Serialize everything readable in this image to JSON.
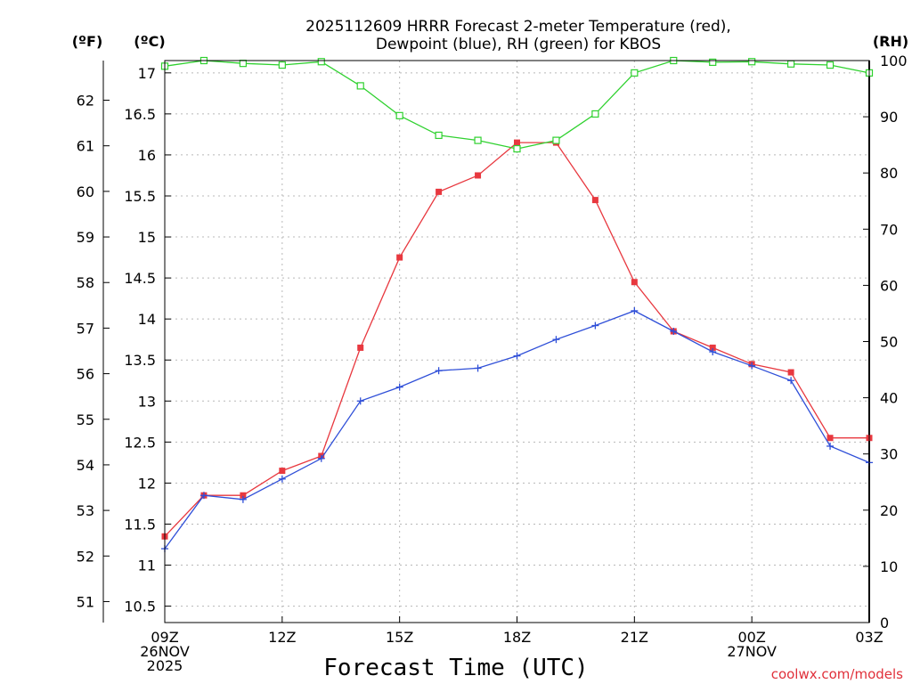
{
  "colors": {
    "temperature": "#e8383f",
    "dewpoint": "#2f4fd8",
    "rh": "#2fd12f",
    "credit": "#e0303a"
  },
  "chart_data": {
    "type": "line",
    "title_lines": [
      "2025112609 HRRR Forecast 2-meter Temperature (red),",
      "Dewpoint (blue), RH (green) for KBOS"
    ],
    "xlabel": "Forecast Time (UTC)",
    "units": {
      "fahrenheit": "(ºF)",
      "celsius": "(ºC)",
      "rh": "(RH)"
    },
    "credit": "coolwx.com/models",
    "x_hours": [
      0,
      1,
      2,
      3,
      4,
      5,
      6,
      7,
      8,
      9,
      10,
      11,
      12,
      13,
      14,
      15,
      16,
      17,
      18
    ],
    "x_range": [
      0,
      18
    ],
    "x_ticks": [
      {
        "hour": 0,
        "lines": [
          "09Z",
          "26NOV",
          "2025"
        ]
      },
      {
        "hour": 3,
        "lines": [
          "12Z"
        ]
      },
      {
        "hour": 6,
        "lines": [
          "15Z"
        ]
      },
      {
        "hour": 9,
        "lines": [
          "18Z"
        ]
      },
      {
        "hour": 12,
        "lines": [
          "21Z"
        ]
      },
      {
        "hour": 15,
        "lines": [
          "00Z",
          "27NOV"
        ]
      },
      {
        "hour": 18,
        "lines": [
          "03Z"
        ]
      }
    ],
    "celsius_axis": {
      "range": [
        10.3,
        17.15
      ],
      "ticks": [
        "10.5",
        "11",
        "11.5",
        "12",
        "12.5",
        "13",
        "13.5",
        "14",
        "14.5",
        "15",
        "15.5",
        "16",
        "16.5",
        "17"
      ]
    },
    "fahrenheit_axis": {
      "ticks": [
        "51",
        "52",
        "53",
        "54",
        "55",
        "56",
        "57",
        "58",
        "59",
        "60",
        "61",
        "62"
      ]
    },
    "rh_axis": {
      "range": [
        0,
        100
      ],
      "ticks": [
        "0",
        "10",
        "20",
        "30",
        "40",
        "50",
        "60",
        "70",
        "80",
        "90",
        "100"
      ]
    },
    "series": [
      {
        "name": "Temperature",
        "color_key": "temperature",
        "axis": "celsius",
        "marker": "filled-square",
        "values": [
          11.35,
          11.85,
          11.85,
          12.15,
          12.33,
          13.65,
          14.75,
          15.55,
          15.75,
          16.15,
          16.15,
          15.45,
          14.45,
          13.85,
          13.65,
          13.45,
          13.35,
          12.55,
          12.55
        ]
      },
      {
        "name": "Dewpoint",
        "color_key": "dewpoint",
        "axis": "celsius",
        "marker": "plus",
        "values": [
          11.2,
          11.85,
          11.8,
          12.05,
          12.3,
          13.0,
          13.17,
          13.37,
          13.4,
          13.55,
          13.75,
          13.92,
          14.1,
          13.85,
          13.6,
          13.43,
          13.25,
          12.45,
          12.25
        ]
      },
      {
        "name": "RH",
        "color_key": "rh",
        "axis": "rh",
        "marker": "open-square",
        "values": [
          99,
          100,
          99.5,
          99.2,
          99.8,
          95.5,
          90.2,
          86.7,
          85.8,
          84.3,
          85.8,
          90.5,
          97.8,
          100,
          99.7,
          99.8,
          99.4,
          99.2,
          97.8
        ]
      }
    ]
  }
}
